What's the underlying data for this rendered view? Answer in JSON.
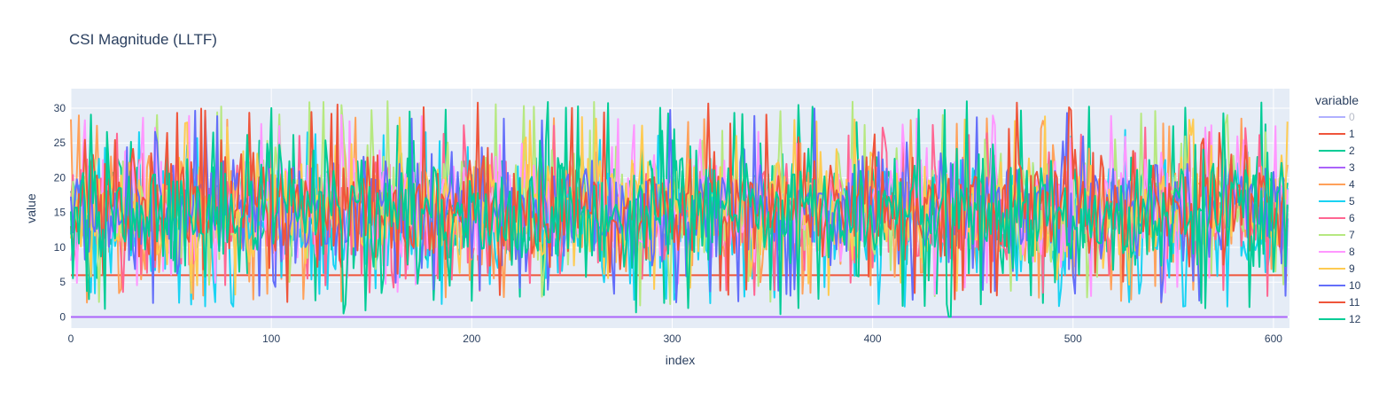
{
  "chart_data": {
    "type": "line",
    "title": "CSI Magnitude (LLTF)",
    "xlabel": "index",
    "ylabel": "value",
    "xlim": [
      0,
      608
    ],
    "ylim": [
      -1.6,
      32.8
    ],
    "x_ticks": [
      0,
      100,
      200,
      300,
      400,
      500,
      600
    ],
    "y_ticks": [
      0,
      5,
      10,
      15,
      20,
      25,
      30
    ],
    "grid": true,
    "legend_title": "variable",
    "legend_position": "right",
    "n_points": 608,
    "series": [
      {
        "name": "0",
        "color": "#b0b0ff",
        "constant": 0,
        "note_faded": true
      },
      {
        "name": "1",
        "color": "#ef553b",
        "constant": 6
      },
      {
        "name": "2",
        "color": "#00cc96",
        "min": 2,
        "max": 31
      },
      {
        "name": "3",
        "color": "#ab63fa",
        "constant": 0
      },
      {
        "name": "4",
        "color": "#ffa15a",
        "min": 2,
        "max": 29
      },
      {
        "name": "5",
        "color": "#19d3f3",
        "min": 1.5,
        "max": 27
      },
      {
        "name": "6",
        "color": "#ff6692",
        "min": 3,
        "max": 28
      },
      {
        "name": "7",
        "color": "#b6e880",
        "min": 1.5,
        "max": 31
      },
      {
        "name": "8",
        "color": "#ff97ff",
        "min": 3,
        "max": 29
      },
      {
        "name": "9",
        "color": "#fecb52",
        "min": 3,
        "max": 29
      },
      {
        "name": "10",
        "color": "#636efa",
        "min": 2,
        "max": 30
      },
      {
        "name": "11",
        "color": "#ef553b",
        "min": 2,
        "max": 31
      },
      {
        "name": "12",
        "color": "#00cc96",
        "min": 0,
        "max": 31
      }
    ]
  }
}
